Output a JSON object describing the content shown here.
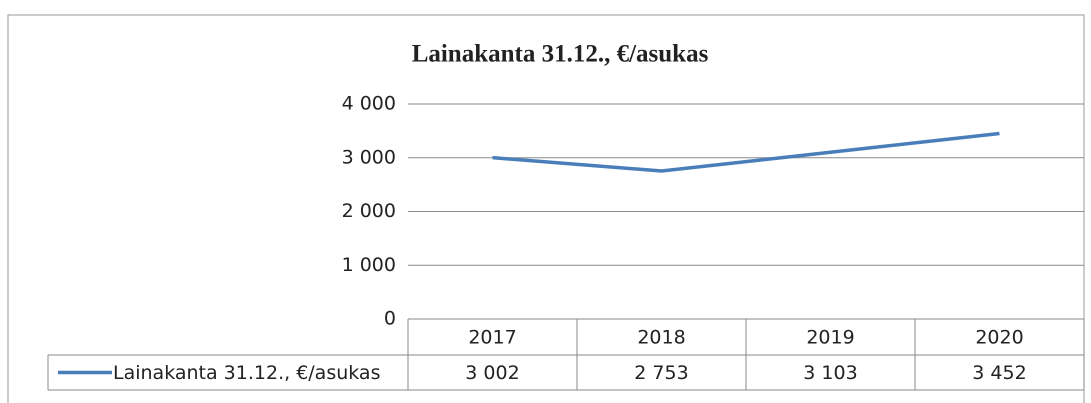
{
  "chart_data": {
    "type": "line",
    "title": "Lainakanta 31.12., €/asukas",
    "categories": [
      "2017",
      "2018",
      "2019",
      "2020"
    ],
    "series": [
      {
        "name": "Lainakanta 31.12., €/asukas",
        "color": "#4a7ebb",
        "values": [
          3002,
          2753,
          3103,
          3452
        ],
        "value_labels": [
          "3 002",
          "2 753",
          "3 103",
          "3 452"
        ]
      }
    ],
    "ylim": [
      0,
      4000
    ],
    "yticks": [
      0,
      {
        "value": 1000,
        "label": "1 000"
      },
      {
        "value": 2000,
        "label": "2 000"
      },
      {
        "value": 3000,
        "label": "3 000"
      },
      {
        "value": 4000,
        "label": "4 000"
      }
    ],
    "grid": true
  }
}
